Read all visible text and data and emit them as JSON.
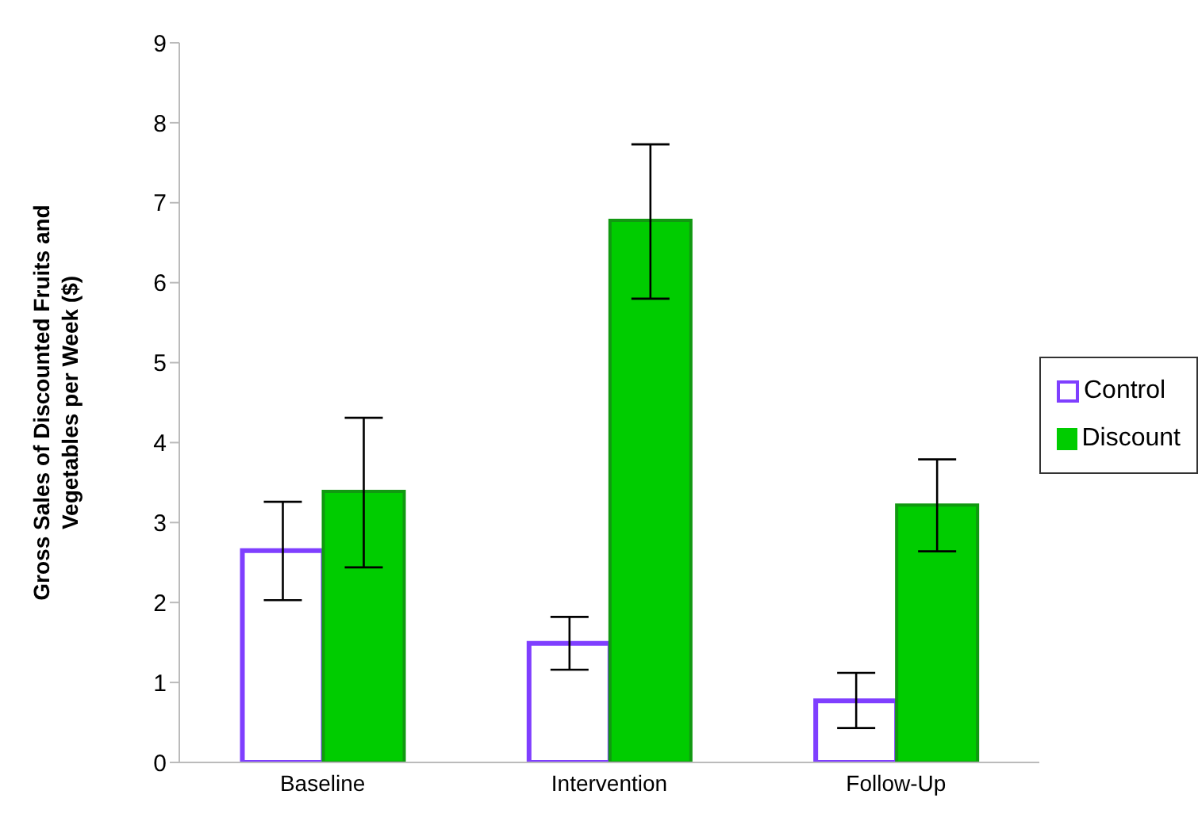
{
  "chart_data": {
    "type": "bar",
    "ylabel": "Gross Sales of Discounted Fruits and Vegetables per Week  ($)",
    "categories": [
      "Baseline",
      "Intervention",
      "Follow-Up"
    ],
    "series": [
      {
        "name": "Control",
        "color": "#7f3fff",
        "values": [
          2.65,
          1.49,
          0.77
        ],
        "errors": [
          [
            2.03,
            3.26
          ],
          [
            1.16,
            1.82
          ],
          [
            0.43,
            1.12
          ]
        ]
      },
      {
        "name": "Discount",
        "color": "#00cc00",
        "values": [
          3.39,
          6.78,
          3.22
        ],
        "errors": [
          [
            2.44,
            4.31
          ],
          [
            5.8,
            7.73
          ],
          [
            2.64,
            3.79
          ]
        ]
      }
    ],
    "ylim": [
      0,
      9
    ],
    "yticks": [
      0,
      1,
      2,
      3,
      4,
      5,
      6,
      7,
      8,
      9
    ],
    "grid": false,
    "legend": "right"
  }
}
